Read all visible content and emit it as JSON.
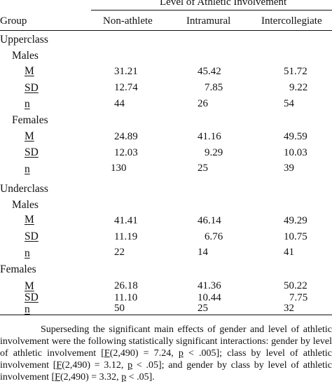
{
  "table": {
    "spanner": "Level of Athletic Involvement",
    "columns": [
      "Group",
      "Non-athlete",
      "Intramural",
      "Intercollegiate"
    ],
    "sections": [
      {
        "class": "Upperclass",
        "genders": [
          {
            "label": "Males",
            "rows": [
              {
                "stat": "M",
                "values": [
                  "31.21",
                  "45.42",
                  "51.72"
                ]
              },
              {
                "stat": "SD",
                "values": [
                  "12.74",
                  "7.85",
                  "9.22"
                ]
              },
              {
                "stat": "n",
                "values": [
                  "44",
                  "26",
                  "54"
                ]
              }
            ]
          },
          {
            "label": "Females",
            "rows": [
              {
                "stat": "M",
                "values": [
                  "24.89",
                  "41.16",
                  "49.59"
                ]
              },
              {
                "stat": "SD",
                "values": [
                  "12.03",
                  "9.29",
                  "10.03"
                ]
              },
              {
                "stat": "n",
                "values": [
                  "130",
                  "25",
                  "39"
                ]
              }
            ]
          }
        ]
      },
      {
        "class": "Underclass",
        "genders": [
          {
            "label": "Males",
            "rows": [
              {
                "stat": "M",
                "values": [
                  "41.41",
                  "46.14",
                  "49.29"
                ]
              },
              {
                "stat": "SD",
                "values": [
                  "11.19",
                  "6.76",
                  "10.75"
                ]
              },
              {
                "stat": "n",
                "values": [
                  "22",
                  "14",
                  "41"
                ]
              }
            ]
          },
          {
            "label": "Females",
            "rows": [
              {
                "stat": "M",
                "values": [
                  "26.18",
                  "41.36",
                  "50.22"
                ]
              },
              {
                "stat": "SD",
                "values": [
                  "11.10",
                  "10.44",
                  "7.75"
                ]
              },
              {
                "stat": "n",
                "values": [
                  "50",
                  "25",
                  "32"
                ]
              }
            ]
          }
        ]
      }
    ]
  },
  "paragraph": {
    "t1": "Superseding the significant main effects of gender and level of athletic involvement were the following statistically significant interactions: gender by level of athletic involvement [",
    "f1": "F",
    "t2": "(2,490) = 7.24, ",
    "p1": "p",
    "t3": " < .005]; class by level of athletic involvement [",
    "f2": "F",
    "t4": "(2,490) = 3.12, ",
    "p2": "p",
    "t5": " < .05]; and gender by class by level of athletic involvement [",
    "f3": "F",
    "t6": "(2,490) = 3.32, ",
    "p3": "p",
    "t7": " < .05]."
  }
}
